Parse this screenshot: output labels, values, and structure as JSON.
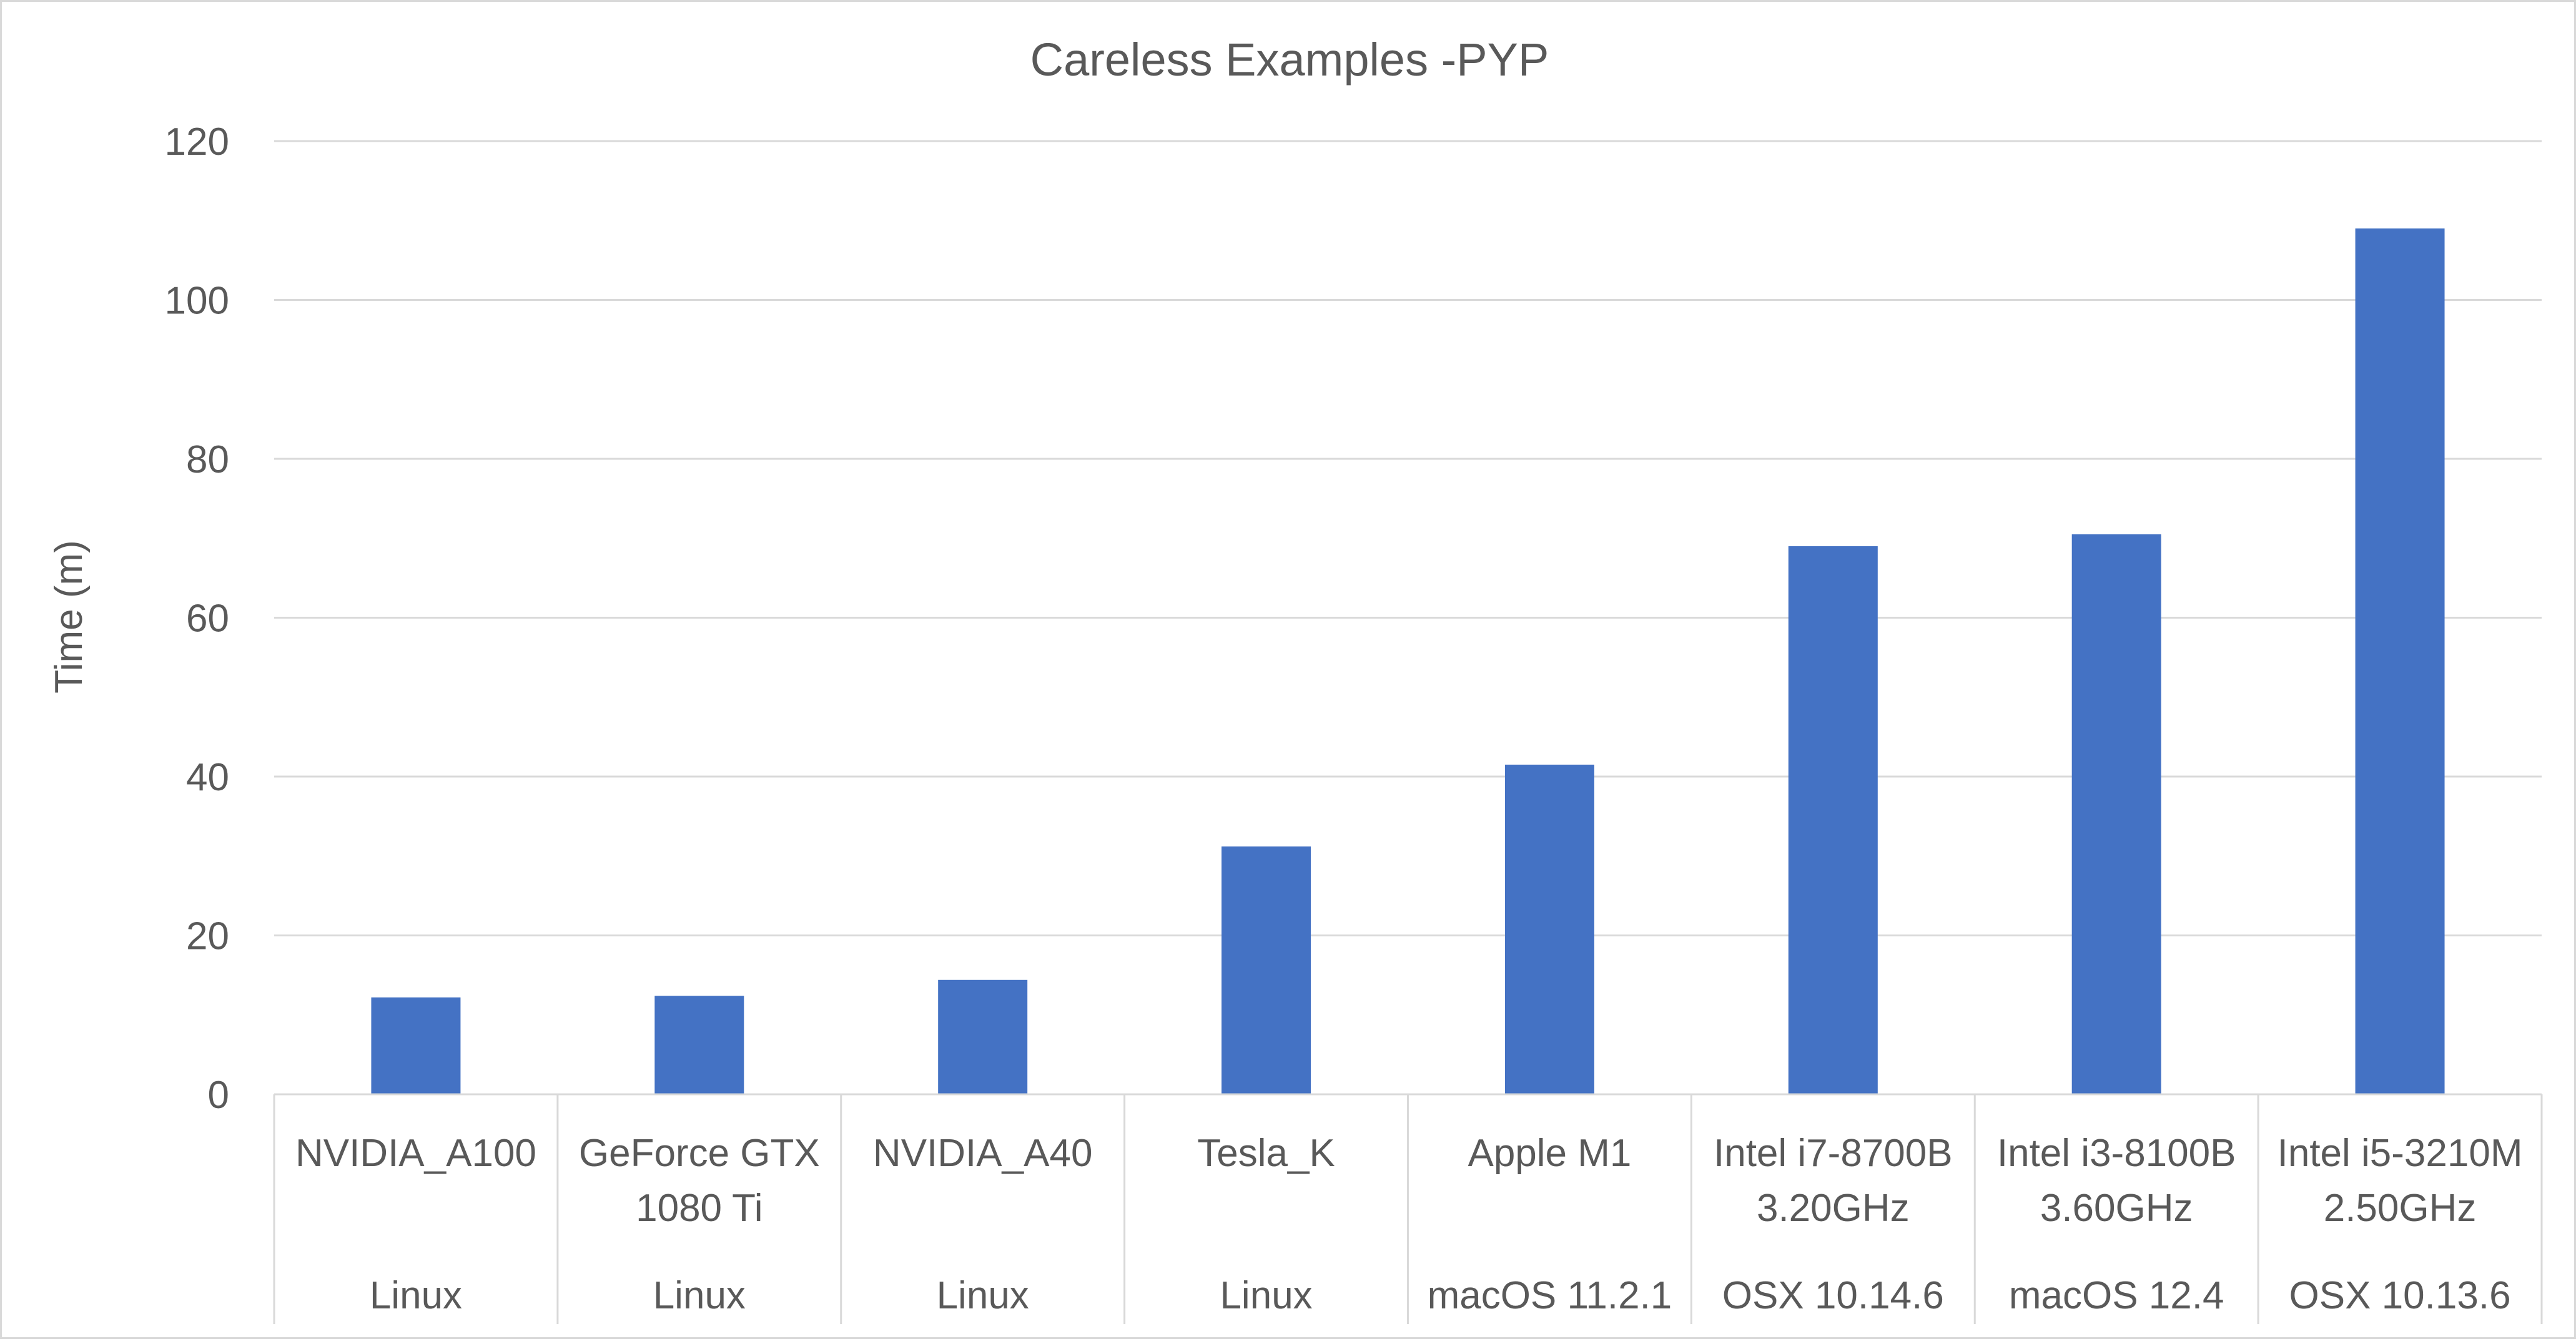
{
  "chart_data": {
    "type": "bar",
    "title": "Careless Examples -PYP",
    "xlabel": "",
    "ylabel": "Time (m)",
    "ylim": [
      0,
      120
    ],
    "yticks": [
      0,
      20,
      40,
      60,
      80,
      100,
      120
    ],
    "grid": true,
    "legend": "none",
    "bar_color": "#4472C4",
    "categories": [
      {
        "name_lines": [
          "NVIDIA_A100"
        ],
        "group": "Linux"
      },
      {
        "name_lines": [
          "GeForce GTX",
          "1080 Ti"
        ],
        "group": "Linux"
      },
      {
        "name_lines": [
          "NVIDIA_A40"
        ],
        "group": "Linux"
      },
      {
        "name_lines": [
          "Tesla_K"
        ],
        "group": "Linux"
      },
      {
        "name_lines": [
          "Apple M1"
        ],
        "group": "macOS 11.2.1"
      },
      {
        "name_lines": [
          "Intel i7-8700B",
          "3.20GHz"
        ],
        "group": "OSX 10.14.6"
      },
      {
        "name_lines": [
          "Intel i3-8100B",
          "3.60GHz"
        ],
        "group": "macOS 12.4"
      },
      {
        "name_lines": [
          "Intel i5-3210M",
          "2.50GHz"
        ],
        "group": "OSX 10.13.6"
      }
    ],
    "values": [
      12.2,
      12.4,
      14.4,
      31.2,
      41.5,
      69.0,
      70.5,
      109.0
    ]
  }
}
